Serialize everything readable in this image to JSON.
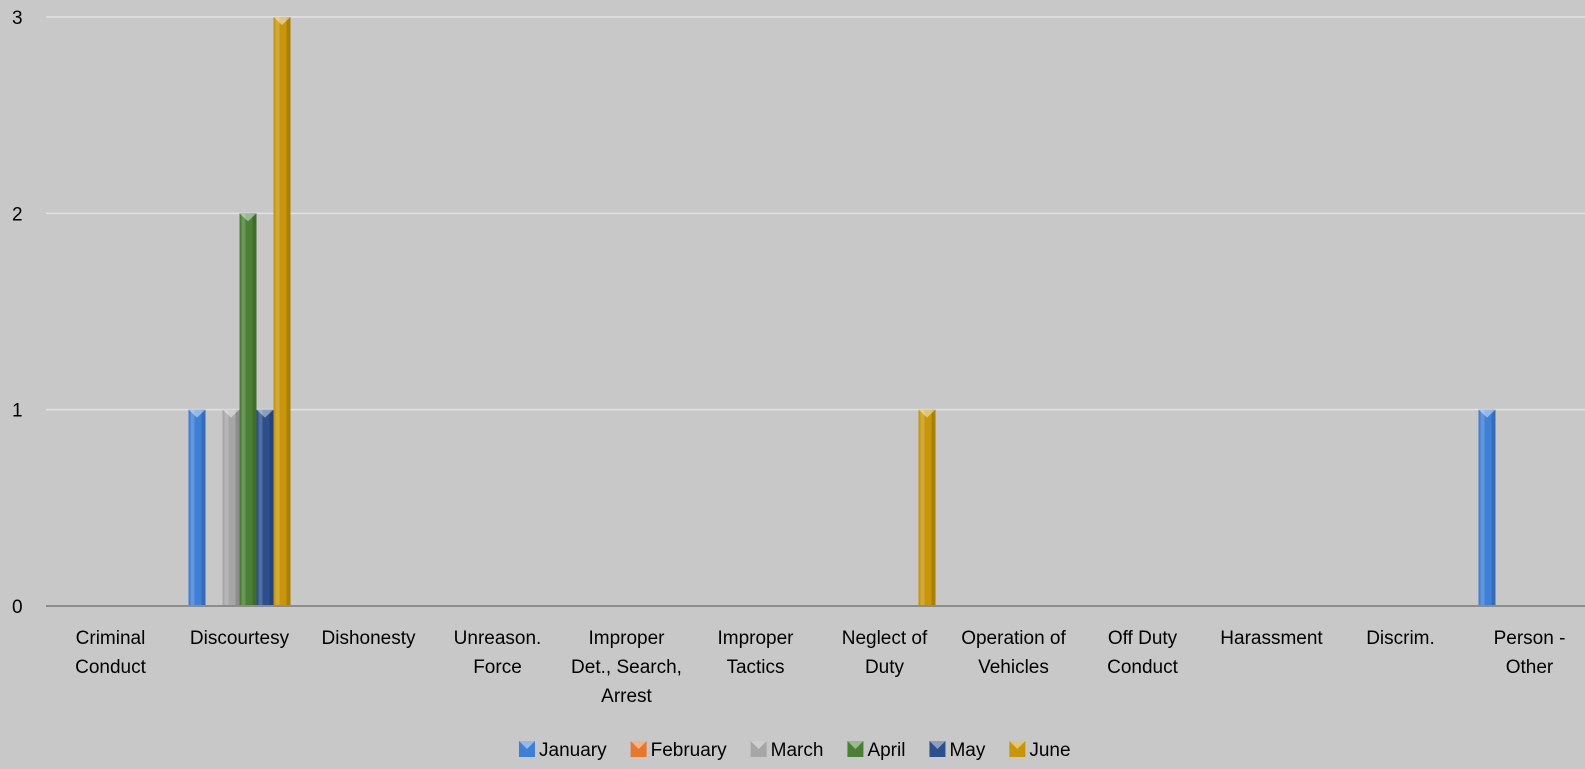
{
  "chart_data": {
    "type": "bar",
    "title": "",
    "xlabel": "",
    "ylabel": "",
    "ylim": [
      0,
      3
    ],
    "yticks": [
      "0",
      "1",
      "2",
      "3"
    ],
    "grid": true,
    "legend_position": "bottom",
    "categories": [
      "Criminal Conduct",
      "Discourtesy",
      "Dishonesty",
      "Unreason. Force",
      "Improper Det., Search, Arrest",
      "Improper Tactics",
      "Neglect of Duty",
      "Operation of Vehicles",
      "Off Duty Conduct",
      "Harassment",
      "Discrim.",
      "Person - Other"
    ],
    "series": [
      {
        "name": "January",
        "color": "#3f7fd6",
        "values": [
          0,
          1,
          0,
          0,
          0,
          0,
          0,
          0,
          0,
          0,
          0,
          1
        ]
      },
      {
        "name": "February",
        "color": "#e8772e",
        "values": [
          0,
          0,
          0,
          0,
          0,
          0,
          0,
          0,
          0,
          0,
          0,
          0
        ]
      },
      {
        "name": "March",
        "color": "#a6a6a6",
        "values": [
          0,
          1,
          0,
          0,
          0,
          0,
          0,
          0,
          0,
          0,
          0,
          0
        ]
      },
      {
        "name": "April",
        "color": "#4a7f35",
        "values": [
          0,
          2,
          0,
          0,
          0,
          0,
          0,
          0,
          0,
          0,
          0,
          0
        ]
      },
      {
        "name": "May",
        "color": "#2d4f8c",
        "values": [
          0,
          1,
          0,
          0,
          0,
          0,
          0,
          0,
          0,
          0,
          0,
          0
        ]
      },
      {
        "name": "June",
        "color": "#c8960a",
        "values": [
          0,
          3,
          0,
          0,
          0,
          0,
          1,
          0,
          0,
          0,
          0,
          0
        ]
      }
    ]
  }
}
